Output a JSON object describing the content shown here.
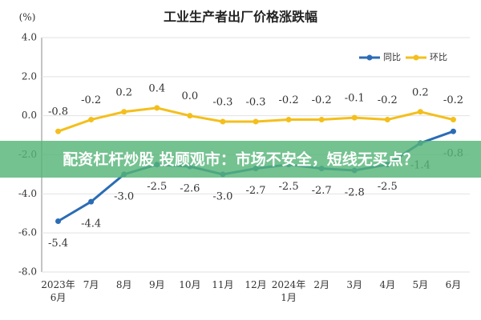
{
  "chart_data": {
    "type": "line",
    "title": "工业生产者出厂价格涨跌幅",
    "y_unit": "(%)",
    "categories": [
      "2023年\n6月",
      "7月",
      "8月",
      "9月",
      "10月",
      "11月",
      "12月",
      "2024年\n1月",
      "2月",
      "3月",
      "4月",
      "5月",
      "6月"
    ],
    "series": [
      {
        "name": "同比",
        "color": "#2b6cb5",
        "values": [
          -5.4,
          -4.4,
          -3.0,
          -2.5,
          -2.6,
          -3.0,
          -2.7,
          -2.5,
          -2.7,
          -2.8,
          -2.5,
          -1.4,
          -0.8
        ],
        "value_labels": [
          "-5.4",
          "-4.4",
          "-3.0",
          "-2.5",
          "-2.6",
          "-3.0",
          "-2.7",
          "-2.5",
          "-2.7",
          "-2.8",
          "-2.5",
          "-1.4",
          "-0.8"
        ],
        "label_side": "below"
      },
      {
        "name": "环比",
        "color": "#f4bf1d",
        "values": [
          -0.8,
          -0.2,
          0.2,
          0.4,
          0.0,
          -0.3,
          -0.3,
          -0.2,
          -0.2,
          -0.1,
          -0.2,
          0.2,
          -0.2
        ],
        "value_labels": [
          "-0.8",
          "-0.2",
          "0.2",
          "0.4",
          "0.0",
          "-0.3",
          "-0.3",
          "-0.2",
          "-0.2",
          "-0.1",
          "-0.2",
          "0.2",
          "-0.2"
        ],
        "label_side": "above"
      }
    ],
    "ylim": [
      -8,
      4
    ],
    "yticks": [
      {
        "value": -8,
        "label": "-8.0"
      },
      {
        "value": -6,
        "label": "-6.0"
      },
      {
        "value": -4,
        "label": "-4.0"
      },
      {
        "value": -2,
        "label": "-2.0"
      },
      {
        "value": 0,
        "label": "0.0"
      },
      {
        "value": 2,
        "label": "2.0"
      },
      {
        "value": 4,
        "label": "4.0"
      }
    ],
    "grid": true,
    "legend": "top-right",
    "overlay_text": "配资杠杆炒股 投顾观市：市场不安全，短线无买点？"
  }
}
